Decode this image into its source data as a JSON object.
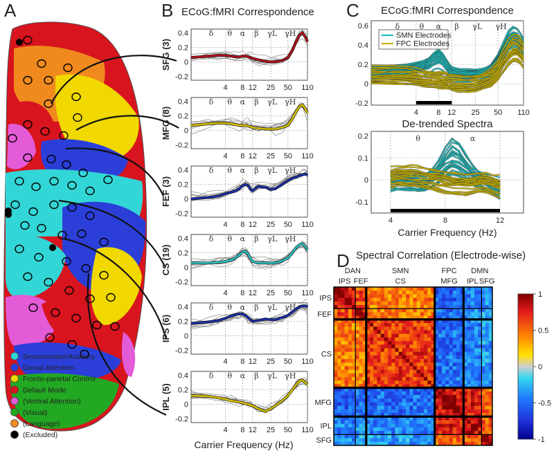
{
  "figure": {
    "panel_letters": [
      "A",
      "B",
      "C",
      "D"
    ],
    "colors": {
      "sensorimotor": "#33d6d6",
      "dorsal": "#2b3fd8",
      "fpc": "#f0d800",
      "default": "#d8141e",
      "ventral": "#e35bd6",
      "visual": "#22a822",
      "language": "#f08a1e",
      "excluded": "#000000",
      "smn_line": "#1bbbbb",
      "fpc_line": "#c9b300",
      "sfg_line": "#b3121a",
      "mfg_line": "#d6c000",
      "fef_line": "#1d2fa8",
      "cs_line": "#2cc3c3",
      "ips_line": "#1d2fa8",
      "ipl_line": "#d6c000",
      "thin_gray": "#8a8a8a"
    }
  },
  "panel_a": {
    "legend": [
      {
        "label": "Sensorimotor/Auditory",
        "color": "#33d6d6"
      },
      {
        "label": "Dorsal Attention",
        "color": "#2b3fd8"
      },
      {
        "label": "Fronto-parietal Control",
        "color": "#f0d800"
      },
      {
        "label": "Default Mode",
        "color": "#d8141e"
      },
      {
        "label": "(Ventral Attention)",
        "color": "#e35bd6"
      },
      {
        "label": "(Visual)",
        "color": "#22a822"
      },
      {
        "label": "(Language)",
        "color": "#f08a1e"
      },
      {
        "label": "(Excluded)",
        "color": "#000000"
      }
    ]
  },
  "chart_data": [
    {
      "id": "B",
      "type": "line",
      "title": "ECoG:fMRI Correspondence",
      "xlabel": "Carrier Frequency (Hz)",
      "x_scale": "log",
      "x_ticks": [
        "4",
        "8",
        "12",
        "25",
        "50",
        "110"
      ],
      "band_labels": [
        "δ",
        "θ",
        "α",
        "β",
        "γL",
        "γH"
      ],
      "grid": true,
      "x": [
        1,
        2,
        3,
        4,
        5,
        6,
        7,
        8,
        9,
        10,
        11,
        12,
        15,
        20,
        25,
        30,
        40,
        50,
        60,
        70,
        80,
        90,
        100,
        110
      ],
      "subplots": [
        {
          "ylabel": "SFG (3)",
          "ylim": [
            -0.2,
            0.4
          ],
          "y_ticks": [
            "0.4",
            "0.2",
            "0",
            "-0.2"
          ],
          "color": "#b3121a",
          "values": [
            0.06,
            0.08,
            0.09,
            0.09,
            0.08,
            0.07,
            0.07,
            0.08,
            0.08,
            0.07,
            0.06,
            0.05,
            0.03,
            0.01,
            0.0,
            0.0,
            0.02,
            0.06,
            0.16,
            0.28,
            0.37,
            0.4,
            0.35,
            0.28
          ]
        },
        {
          "ylabel": "MFG (8)",
          "ylim": [
            -0.2,
            0.4
          ],
          "y_ticks": [
            "0.4",
            "0.2",
            "0",
            "-0.2"
          ],
          "color": "#d6c000",
          "values": [
            0.07,
            0.09,
            0.1,
            0.1,
            0.09,
            0.08,
            0.07,
            0.07,
            0.07,
            0.06,
            0.05,
            0.04,
            0.03,
            0.02,
            0.02,
            0.02,
            0.04,
            0.07,
            0.16,
            0.26,
            0.33,
            0.35,
            0.3,
            0.24
          ]
        },
        {
          "ylabel": "FEF (3)",
          "ylim": [
            -0.2,
            0.4
          ],
          "y_ticks": [
            "0.4",
            "0.2",
            "0",
            "-0.2"
          ],
          "color": "#1d2fa8",
          "values": [
            0.0,
            0.02,
            0.04,
            0.07,
            0.09,
            0.11,
            0.14,
            0.18,
            0.2,
            0.18,
            0.13,
            0.11,
            0.17,
            0.16,
            0.13,
            0.14,
            0.2,
            0.25,
            0.28,
            0.3,
            0.32,
            0.33,
            0.34,
            0.33
          ]
        },
        {
          "ylabel": "CS (19)",
          "ylim": [
            -0.2,
            0.4
          ],
          "y_ticks": [
            "0.4",
            "0.2",
            "0",
            "-0.2"
          ],
          "color": "#2cc3c3",
          "values": [
            0.06,
            0.06,
            0.07,
            0.08,
            0.1,
            0.13,
            0.17,
            0.21,
            0.22,
            0.18,
            0.12,
            0.08,
            0.06,
            0.06,
            0.06,
            0.06,
            0.09,
            0.13,
            0.2,
            0.27,
            0.31,
            0.32,
            0.29,
            0.24
          ]
        },
        {
          "ylabel": "IPS (6)",
          "ylim": [
            -0.2,
            0.4
          ],
          "y_ticks": [
            "0.4",
            "0.2",
            "0",
            "-0.2"
          ],
          "color": "#1d2fa8",
          "values": [
            0.17,
            0.19,
            0.21,
            0.24,
            0.27,
            0.29,
            0.3,
            0.3,
            0.28,
            0.25,
            0.22,
            0.2,
            0.21,
            0.23,
            0.22,
            0.22,
            0.25,
            0.28,
            0.33,
            0.37,
            0.4,
            0.41,
            0.41,
            0.4
          ]
        },
        {
          "ylabel": "IPL (5)",
          "ylim": [
            -0.2,
            0.4
          ],
          "y_ticks": [
            "0.4",
            "0.2",
            "0",
            "-0.2"
          ],
          "color": "#d6c000",
          "values": [
            0.12,
            0.11,
            0.09,
            0.07,
            0.05,
            0.04,
            0.03,
            0.02,
            0.01,
            0.0,
            -0.01,
            -0.02,
            -0.06,
            -0.1,
            -0.06,
            -0.02,
            0.05,
            0.12,
            0.2,
            0.27,
            0.32,
            0.33,
            0.3,
            0.27
          ]
        }
      ]
    },
    {
      "id": "C-top",
      "type": "line",
      "title": "ECoG:fMRI Correspondence",
      "x_scale": "log",
      "x_ticks": [
        "4",
        "8",
        "12",
        "25",
        "50",
        "110"
      ],
      "y_ticks": [
        "0.6",
        "0.4",
        "0.2",
        "0",
        "-0.2"
      ],
      "ylim": [
        -0.2,
        0.6
      ],
      "band_labels": [
        "δ",
        "θ",
        "α",
        "β",
        "γL",
        "γH"
      ],
      "legend_position": "top-left",
      "x": [
        1,
        2,
        3,
        4,
        5,
        6,
        7,
        8,
        9,
        10,
        11,
        12,
        15,
        20,
        25,
        30,
        40,
        50,
        60,
        70,
        80,
        90,
        100,
        110
      ],
      "series": [
        {
          "name": "SMN Electrodes",
          "color": "#1bbbbb",
          "values": [
            0.13,
            0.14,
            0.15,
            0.16,
            0.18,
            0.21,
            0.25,
            0.3,
            0.27,
            0.21,
            0.15,
            0.11,
            0.09,
            0.09,
            0.09,
            0.09,
            0.13,
            0.22,
            0.36,
            0.46,
            0.5,
            0.49,
            0.44,
            0.38
          ]
        },
        {
          "name": "FPC Electrodes",
          "color": "#c9b300",
          "values": [
            0.08,
            0.08,
            0.07,
            0.06,
            0.05,
            0.04,
            0.04,
            0.04,
            0.04,
            0.03,
            0.02,
            0.01,
            0.0,
            0.0,
            0.0,
            0.01,
            0.05,
            0.12,
            0.24,
            0.33,
            0.38,
            0.38,
            0.34,
            0.28
          ]
        }
      ]
    },
    {
      "id": "C-bottom",
      "type": "line",
      "title": "De-trended Spectra",
      "xlabel": "Carrier Frequency (Hz)",
      "x_ticks": [
        "4",
        "8",
        "12"
      ],
      "y_ticks": [
        "0.2",
        "0.1",
        "0",
        "-0.1"
      ],
      "ylim": [
        -0.15,
        0.22
      ],
      "band_labels": [
        "θ",
        "α"
      ],
      "x": [
        4,
        4.5,
        5,
        5.5,
        6,
        6.5,
        7,
        7.5,
        8,
        8.5,
        9,
        9.5,
        10,
        10.5,
        11,
        11.5,
        12
      ],
      "series": [
        {
          "name": "SMN Electrodes",
          "color": "#1bbbbb",
          "values": [
            0.0,
            0.01,
            0.0,
            0.0,
            -0.01,
            0.0,
            0.01,
            0.04,
            0.09,
            0.14,
            0.12,
            0.07,
            0.03,
            0.0,
            -0.01,
            -0.02,
            -0.04
          ]
        },
        {
          "name": "FPC Electrodes",
          "color": "#c9b300",
          "values": [
            0.01,
            0.02,
            0.02,
            0.02,
            0.02,
            0.01,
            0.01,
            0.0,
            -0.01,
            -0.02,
            -0.02,
            -0.02,
            -0.02,
            -0.01,
            -0.01,
            -0.02,
            -0.03
          ]
        }
      ]
    },
    {
      "id": "D",
      "type": "heatmap",
      "title": "Spectral Correlation (Electrode-wise)",
      "network_labels": [
        "DAN",
        "SMN",
        "FPC",
        "DMN"
      ],
      "region_labels_top": [
        "IPS",
        "FEF",
        "CS",
        "MFG",
        "IPL",
        "SFG"
      ],
      "region_labels_left": [
        "IPS",
        "FEF",
        "CS",
        "MFG",
        "IPL",
        "SFG"
      ],
      "colorbar_ticks": [
        "1",
        "0.5",
        "0",
        "-0.5",
        "-1"
      ],
      "vmin": -1,
      "vmax": 1,
      "groups": [
        {
          "name": "IPS",
          "size": 6,
          "network": "DAN"
        },
        {
          "name": "FEF",
          "size": 3,
          "network": "DAN"
        },
        {
          "name": "CS",
          "size": 19,
          "network": "SMN"
        },
        {
          "name": "MFG",
          "size": 8,
          "network": "FPC"
        },
        {
          "name": "IPL",
          "size": 5,
          "network": "DMN"
        },
        {
          "name": "SFG",
          "size": 3,
          "network": "DMN"
        }
      ],
      "block_means": [
        [
          0.85,
          0.6,
          0.45,
          -0.55,
          -0.45,
          -0.4
        ],
        [
          0.6,
          0.8,
          0.45,
          -0.5,
          -0.4,
          -0.35
        ],
        [
          0.45,
          0.45,
          0.65,
          -0.5,
          -0.45,
          -0.35
        ],
        [
          -0.55,
          -0.5,
          -0.5,
          0.85,
          0.75,
          0.5
        ],
        [
          -0.45,
          -0.4,
          -0.45,
          0.75,
          0.85,
          0.55
        ],
        [
          -0.4,
          -0.35,
          -0.35,
          0.5,
          0.55,
          0.9
        ]
      ]
    }
  ]
}
